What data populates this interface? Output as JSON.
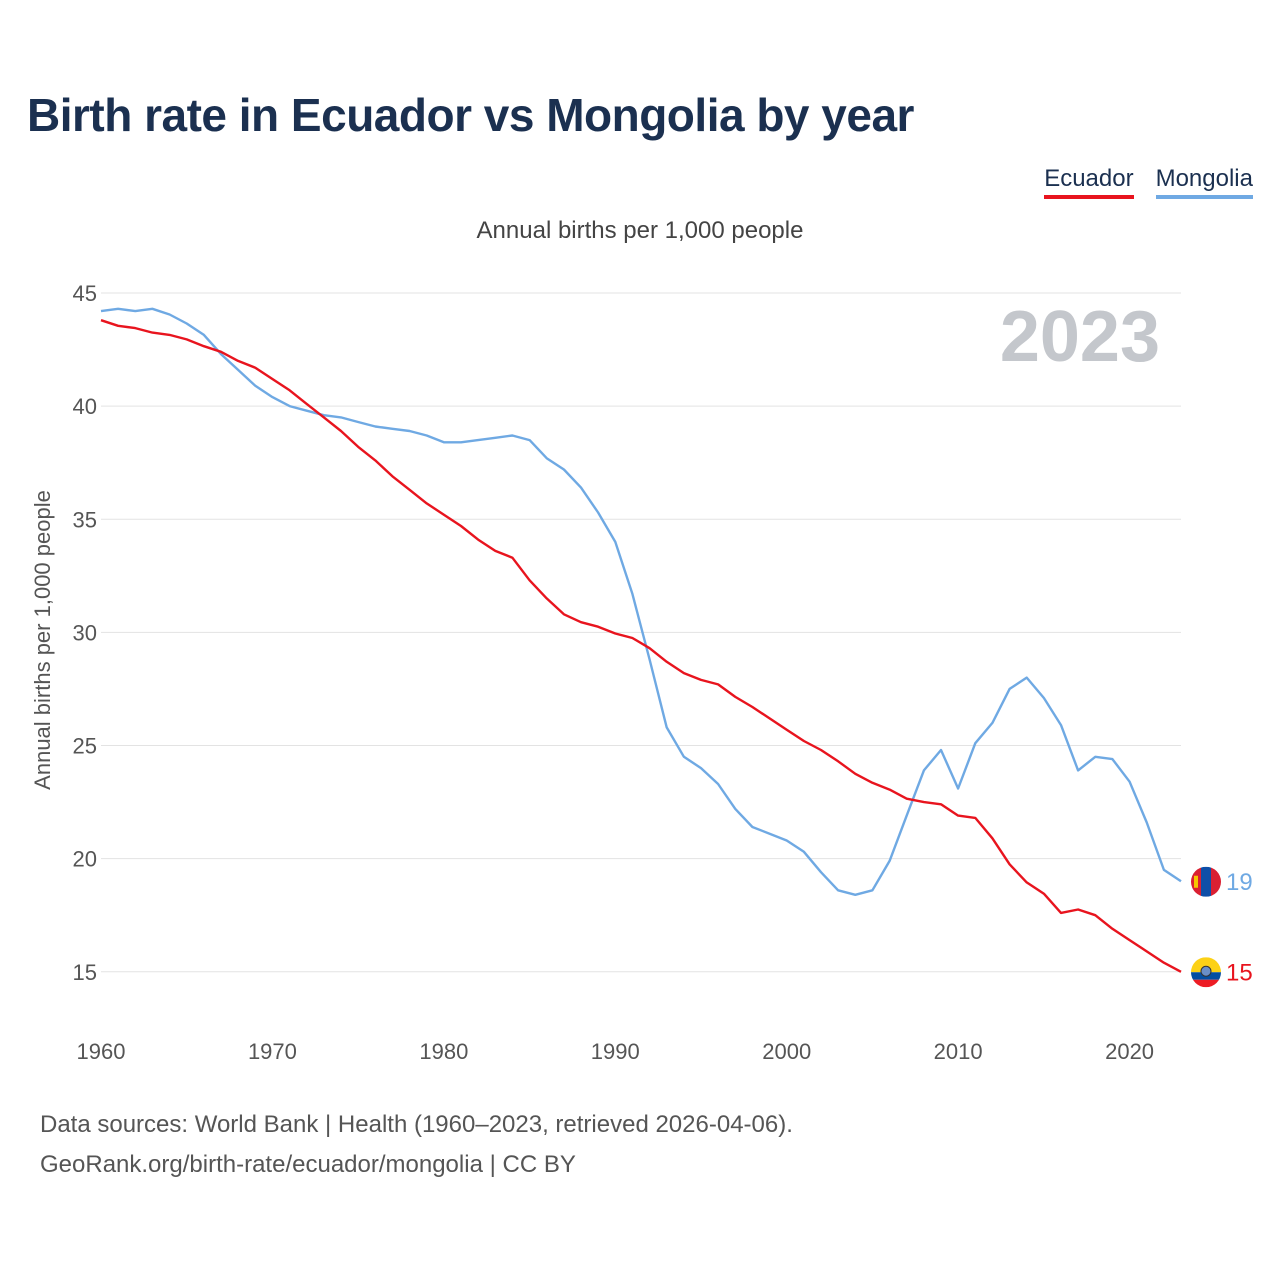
{
  "title": "Birth rate in Ecuador vs Mongolia by year",
  "subtitle": "Annual births per 1,000 people",
  "legend": [
    "Ecuador",
    "Mongolia"
  ],
  "year_label": "2023",
  "footer": {
    "line1": "Data sources: World Bank | Health (1960–2023, retrieved 2026-04-06).",
    "line2": "GeoRank.org/birth-rate/ecuador/mongolia | CC BY"
  },
  "colors": {
    "ecuador": "#e8141e",
    "mongolia": "#6fa9e3",
    "title": "#1b3050"
  },
  "chart_data": {
    "type": "line",
    "title": "Birth rate in Ecuador vs Mongolia by year",
    "ylabel": "Annual births per 1,000 people",
    "xlabel": "",
    "xlim": [
      1960,
      2023
    ],
    "ylim": [
      13,
      45
    ],
    "y_ticks": [
      15,
      20,
      25,
      30,
      35,
      40,
      45
    ],
    "x_ticks": [
      1960,
      1970,
      1980,
      1990,
      2000,
      2010,
      2020
    ],
    "grid": true,
    "x": [
      1960,
      1961,
      1962,
      1963,
      1964,
      1965,
      1966,
      1967,
      1968,
      1969,
      1970,
      1971,
      1972,
      1973,
      1974,
      1975,
      1976,
      1977,
      1978,
      1979,
      1980,
      1981,
      1982,
      1983,
      1984,
      1985,
      1986,
      1987,
      1988,
      1989,
      1990,
      1991,
      1992,
      1993,
      1994,
      1995,
      1996,
      1997,
      1998,
      1999,
      2000,
      2001,
      2002,
      2003,
      2004,
      2005,
      2006,
      2007,
      2008,
      2009,
      2010,
      2011,
      2012,
      2013,
      2014,
      2015,
      2016,
      2017,
      2018,
      2019,
      2020,
      2021,
      2022,
      2023
    ],
    "series": [
      {
        "name": "Ecuador",
        "end_label": "15",
        "values": [
          43.8,
          43.55,
          43.45,
          43.25,
          43.15,
          42.95,
          42.65,
          42.4,
          42.0,
          41.7,
          41.2,
          40.7,
          40.1,
          39.5,
          38.9,
          38.2,
          37.6,
          36.9,
          36.3,
          35.7,
          35.2,
          34.7,
          34.1,
          33.6,
          33.3,
          32.3,
          31.5,
          30.8,
          30.45,
          30.25,
          29.95,
          29.75,
          29.3,
          28.7,
          28.2,
          27.9,
          27.7,
          27.15,
          26.7,
          26.2,
          25.7,
          25.2,
          24.8,
          24.3,
          23.75,
          23.35,
          23.05,
          22.65,
          22.5,
          22.4,
          21.9,
          21.8,
          20.9,
          19.75,
          18.95,
          18.45,
          17.6,
          17.75,
          17.5,
          16.9,
          16.4,
          15.9,
          15.4,
          15.0
        ]
      },
      {
        "name": "Mongolia",
        "end_label": "19",
        "values": [
          44.2,
          44.3,
          44.2,
          44.3,
          44.05,
          43.65,
          43.15,
          42.3,
          41.6,
          40.9,
          40.4,
          40.0,
          39.8,
          39.6,
          39.5,
          39.3,
          39.1,
          39.0,
          38.9,
          38.7,
          38.4,
          38.4,
          38.5,
          38.6,
          38.7,
          38.5,
          37.7,
          37.2,
          36.4,
          35.3,
          34.0,
          31.7,
          28.8,
          25.8,
          24.5,
          24.0,
          23.3,
          22.2,
          21.4,
          21.1,
          20.8,
          20.3,
          19.4,
          18.6,
          18.4,
          18.6,
          19.9,
          21.9,
          23.9,
          24.8,
          23.1,
          25.1,
          26.0,
          27.5,
          28.0,
          27.1,
          25.9,
          23.9,
          24.5,
          24.4,
          23.4,
          21.6,
          19.5,
          19.0
        ]
      }
    ]
  }
}
